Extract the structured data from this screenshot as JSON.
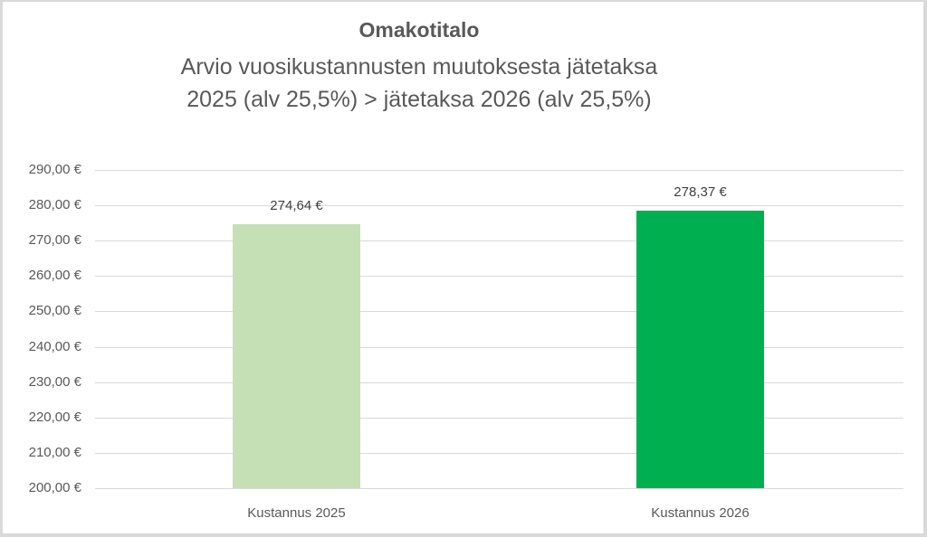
{
  "chart_data": {
    "type": "bar",
    "title": "Omakotitalo",
    "subtitle_line1": "Arvio vuosikustannusten muutoksesta jätetaksa",
    "subtitle_line2": "2025 (alv 25,5%) > jätetaksa 2026 (alv 25,5%)",
    "categories": [
      "Kustannus 2025",
      "Kustannus 2026"
    ],
    "values": [
      274.64,
      278.37
    ],
    "value_labels": [
      "274,64 €",
      "278,37 €"
    ],
    "bar_colors": [
      "#c5e0b4",
      "#00b050"
    ],
    "xlabel": "",
    "ylabel": "",
    "ylim": [
      200,
      290
    ],
    "yticks": [
      "290,00 €",
      "280,00 €",
      "270,00 €",
      "260,00 €",
      "250,00 €",
      "240,00 €",
      "230,00 €",
      "220,00 €",
      "210,00 €",
      "200,00 €"
    ],
    "grid": true,
    "legend": "none"
  }
}
